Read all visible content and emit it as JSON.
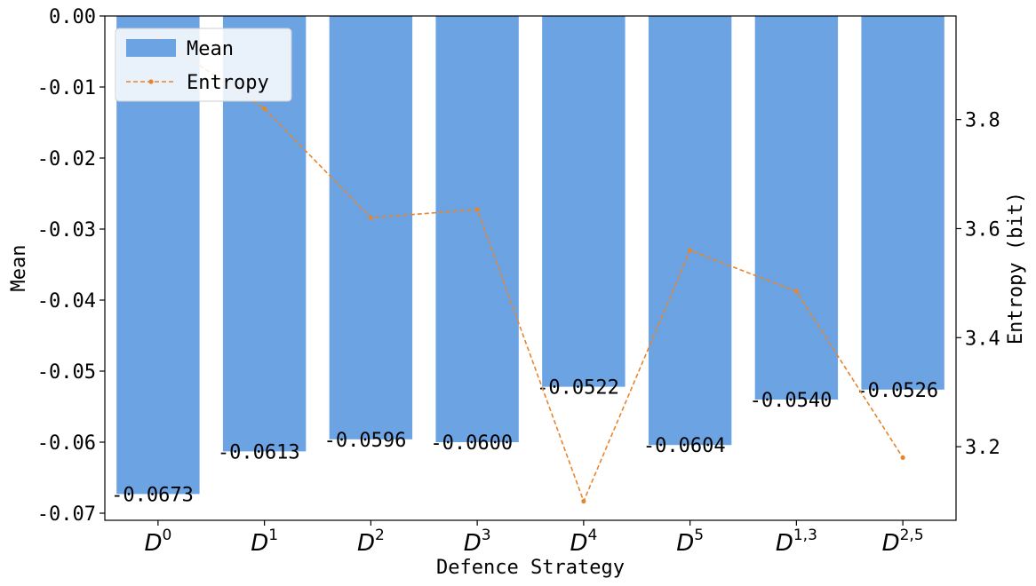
{
  "chart_data": {
    "type": "bar",
    "title": "",
    "xlabel": "Defence Strategy",
    "ylabel": "Mean",
    "y2label": "Entropy (bit)",
    "categories": [
      {
        "base": "D",
        "sup": "0"
      },
      {
        "base": "D",
        "sup": "1"
      },
      {
        "base": "D",
        "sup": "2"
      },
      {
        "base": "D",
        "sup": "3"
      },
      {
        "base": "D",
        "sup": "4"
      },
      {
        "base": "D",
        "sup": "5"
      },
      {
        "base": "D",
        "sup": "1,3"
      },
      {
        "base": "D",
        "sup": "2,5"
      }
    ],
    "series": [
      {
        "name": "Mean",
        "type": "bar",
        "axis": "left",
        "color": "#6ca3e3",
        "values": [
          -0.0673,
          -0.0613,
          -0.0596,
          -0.06,
          -0.0522,
          -0.0604,
          -0.054,
          -0.0526
        ],
        "labels": [
          "-0.0673",
          "-0.0613",
          "-0.0596",
          "-0.0600",
          "-0.0522",
          "-0.0604",
          "-0.0540",
          "-0.0526"
        ]
      },
      {
        "name": "Entropy",
        "type": "line",
        "axis": "right",
        "color": "#e8852c",
        "line_style": "dashed",
        "values": [
          3.95,
          3.82,
          3.62,
          3.635,
          3.1,
          3.56,
          3.485,
          3.18
        ]
      }
    ],
    "ylim": [
      -0.071,
      0.0
    ],
    "y2lim": [
      3.065,
      3.99
    ],
    "yticks": [
      "0.00",
      "-0.01",
      "-0.02",
      "-0.03",
      "-0.04",
      "-0.05",
      "-0.06",
      "-0.07"
    ],
    "ytick_values": [
      0.0,
      -0.01,
      -0.02,
      -0.03,
      -0.04,
      -0.05,
      -0.06,
      -0.07
    ],
    "y2ticks": [
      "3.2",
      "3.4",
      "3.6",
      "3.8"
    ],
    "y2tick_values": [
      3.2,
      3.4,
      3.6,
      3.8
    ],
    "legend": {
      "position": "top-left",
      "entries": [
        "Mean",
        "Entropy"
      ]
    },
    "grid": false
  }
}
